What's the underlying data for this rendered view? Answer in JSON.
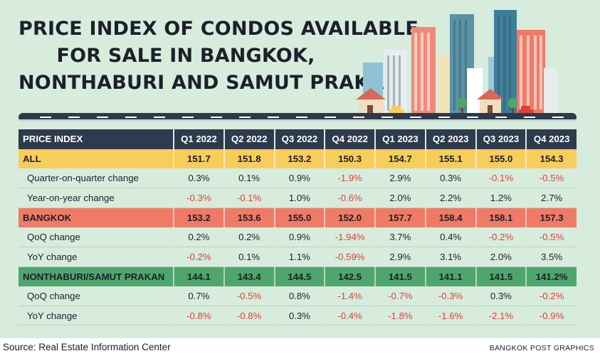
{
  "title_lines": [
    "PRICE INDEX OF CONDOS AVAILABLE",
    "FOR SALE IN BANGKOK,",
    "NONTHABURI AND SAMUT PRAKAN"
  ],
  "colors": {
    "panel": "#d7ecdd",
    "header": "#2e3a4e",
    "all": "#f7cd5b",
    "bangkok": "#ef7b66",
    "nonthaburi_samut_prakan": "#4ea66c",
    "negative": "#e0403a"
  },
  "icons": [
    "city-skyline-illustration",
    "house-icon",
    "tree-icon",
    "car-icon",
    "road-illustration"
  ],
  "source": "Source: Real Estate Information Center",
  "credit": "BANGKOK POST GRAPHICS",
  "chart_data": {
    "type": "table",
    "header_label": "PRICE INDEX",
    "columns": [
      "Q1 2022",
      "Q2 2022",
      "Q3 2022",
      "Q4 2022",
      "Q1 2023",
      "Q2 2023",
      "Q3 2023",
      "Q4 2023"
    ],
    "rows": [
      {
        "label": "ALL",
        "kind": "all",
        "values": [
          "151.7",
          "151.8",
          "153.2",
          "150.3",
          "154.7",
          "155.1",
          "155.0",
          "154.3"
        ]
      },
      {
        "label": "Quarter-on-quarter change",
        "kind": "sub",
        "values": [
          "0.3%",
          "0.1%",
          "0.9%",
          "-1.9%",
          "2.9%",
          "0.3%",
          "-0.1%",
          "-0.5%"
        ]
      },
      {
        "label": "Year-on-year change",
        "kind": "sub",
        "values": [
          "-0.3%",
          "-0.1%",
          "1.0%",
          "-0.6%",
          "2.0%",
          "2.2%",
          "1.2%",
          "2.7%"
        ]
      },
      {
        "label": "BANGKOK",
        "kind": "bkk",
        "values": [
          "153.2",
          "153.6",
          "155.0",
          "152.0",
          "157.7",
          "158.4",
          "158.1",
          "157.3"
        ]
      },
      {
        "label": "QoQ change",
        "kind": "sub",
        "values": [
          "0.2%",
          "0.2%",
          "0.9%",
          "-1.94%",
          "3.7%",
          "0.4%",
          "-0.2%",
          "-0.5%"
        ]
      },
      {
        "label": "YoY change",
        "kind": "sub",
        "values": [
          "-0.2%",
          "0.1%",
          "1.1%",
          "-0.59%",
          "2.9%",
          "3.1%",
          "2.0%",
          "3.5%"
        ]
      },
      {
        "label": "NONTHABURI/SAMUT PRAKAN",
        "kind": "nsp",
        "values": [
          "144.1",
          "143.4",
          "144.5",
          "142.5",
          "141.5",
          "141.1",
          "141.5",
          "141.2%"
        ]
      },
      {
        "label": "QoQ change",
        "kind": "sub",
        "values": [
          "0.7%",
          "-0.5%",
          "0.8%",
          "-1.4%",
          "-0.7%",
          "-0.3%",
          "0.3%",
          "-0.2%"
        ]
      },
      {
        "label": "YoY change",
        "kind": "sub",
        "values": [
          "-0.8%",
          "-0.8%",
          "0.3%",
          "-0.4%",
          "-1.8%",
          "-1.6%",
          "-2.1%",
          "-0.9%"
        ]
      }
    ]
  }
}
